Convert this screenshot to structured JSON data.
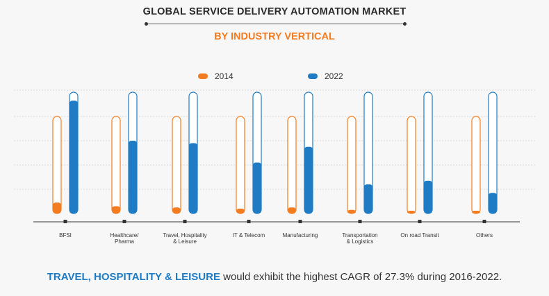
{
  "title": "GLOBAL SERVICE DELIVERY AUTOMATION MARKET",
  "subtitle": "BY INDUSTRY VERTICAL",
  "footer": {
    "highlight": "TRAVEL, HOSPITALITY & LEISURE",
    "rest": " would exhibit the highest CAGR of 27.3% during 2016-2022."
  },
  "colors": {
    "series_2014": "#f47c20",
    "series_2022": "#1e7bc4",
    "track_fill": "#ffffff",
    "grid": "#d8d8d8",
    "axis": "#333333",
    "text": "#333333"
  },
  "chart_data": {
    "type": "bar",
    "style": "rounded capsule bars with unfilled track to the maximum value",
    "categories": [
      "BFSI",
      "Healthcare/ Pharma",
      "Travel, Hospitality & Leisure",
      "IT & Telecom",
      "Manufacturing",
      "Transportation & Logistics",
      "On road Transit",
      "Others"
    ],
    "category_label_lines": [
      [
        "BFSI"
      ],
      [
        "Healthcare/",
        "Pharma"
      ],
      [
        "Travel, Hospitality",
        "& Leisure"
      ],
      [
        "IT & Telecom"
      ],
      [
        "Manufacturing"
      ],
      [
        "Transportation",
        "& Logistics"
      ],
      [
        "On road Transit"
      ],
      [
        "Others"
      ]
    ],
    "series": [
      {
        "name": "2014",
        "color": "#f47c20",
        "values": [
          9,
          6,
          5,
          4,
          5,
          3,
          2,
          2
        ]
      },
      {
        "name": "2022",
        "color": "#1e7bc4",
        "values": [
          93,
          60,
          58,
          42,
          55,
          24,
          27,
          17
        ]
      }
    ],
    "track_max_2014": 80,
    "track_max_2022": 100,
    "ylim": [
      0,
      100
    ],
    "y_axis_visible": false,
    "gridlines": true,
    "legend_position": "top-center",
    "xlabel": "",
    "ylabel": ""
  }
}
